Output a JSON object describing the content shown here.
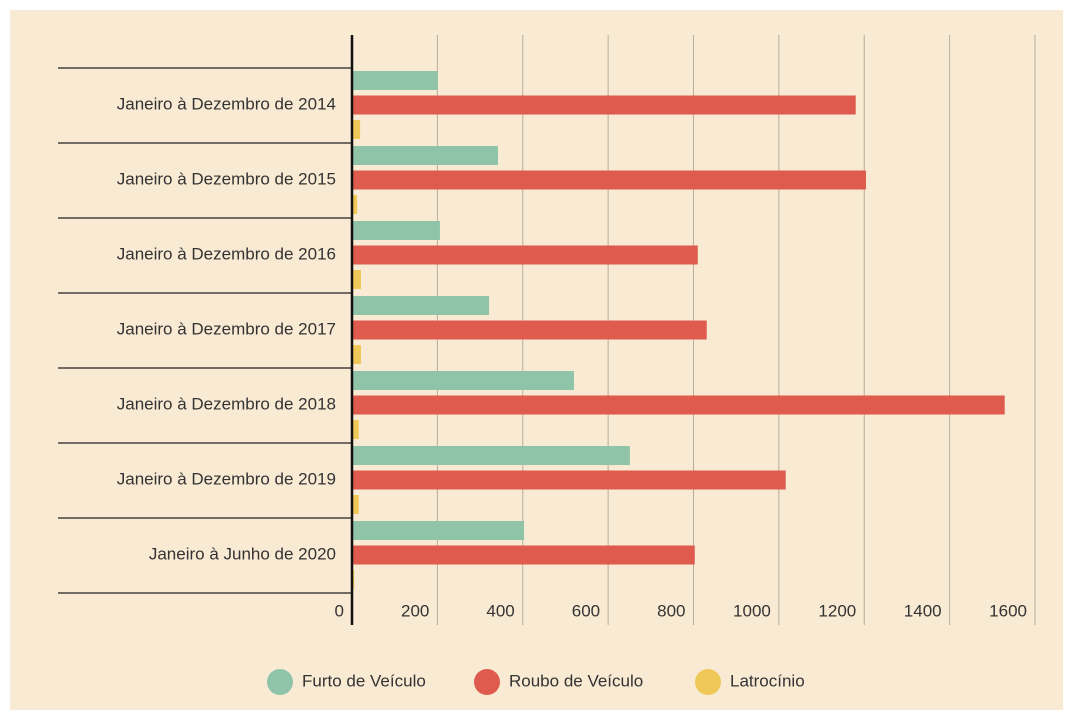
{
  "chart_data": {
    "type": "hbar",
    "categories": [
      "Janeiro à Dezembro de 2014",
      "Janeiro à Dezembro de 2015",
      "Janeiro à Dezembro de 2016",
      "Janeiro à Dezembro de 2017",
      "Janeiro à Dezembro de 2018",
      "Janeiro à Dezembro de 2019",
      "Janeiro à Junho de 2020"
    ],
    "series": [
      {
        "name": "Furto de Veículo",
        "color": "#8fc4a8",
        "values": [
          201,
          342,
          206,
          321,
          520,
          651,
          403
        ]
      },
      {
        "name": "Roubo de Veículo",
        "color": "#de5b4e",
        "values": [
          1180,
          1204,
          810,
          831,
          1529,
          1016,
          803
        ]
      },
      {
        "name": "Latrocínio",
        "color": "#f0c85a",
        "values": [
          19,
          12,
          21,
          21,
          16,
          16,
          5
        ]
      }
    ],
    "xlim": [
      0,
      1600
    ],
    "xticks": [
      0,
      200,
      400,
      600,
      800,
      1000,
      1200,
      1400,
      1600
    ],
    "grid": true,
    "legend": "bottom"
  }
}
